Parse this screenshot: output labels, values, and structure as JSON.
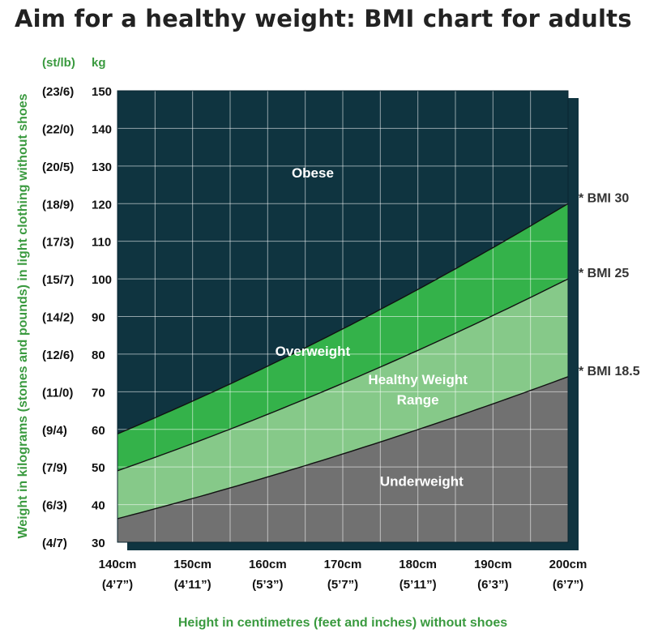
{
  "title": "Aim for a healthy weight: BMI chart for adults",
  "chart_data": {
    "type": "area",
    "title": "Aim for a healthy weight: BMI chart for adults",
    "xlabel": "Height in centimetres (feet and inches) without shoes",
    "ylabel": "Weight in kilograms (stones and pounds) in light clothing without shoes",
    "xlim": [
      140,
      200
    ],
    "ylim": [
      30,
      150
    ],
    "grid": true,
    "x_ticks": [
      {
        "value": 140,
        "label": "140cm",
        "sub": "(4’7”)"
      },
      {
        "value": 150,
        "label": "150cm",
        "sub": "(4’11”)"
      },
      {
        "value": 160,
        "label": "160cm",
        "sub": "(5’3”)"
      },
      {
        "value": 170,
        "label": "170cm",
        "sub": "(5’7”)"
      },
      {
        "value": 180,
        "label": "180cm",
        "sub": "(5’11”)"
      },
      {
        "value": 190,
        "label": "190cm",
        "sub": "(6’3”)"
      },
      {
        "value": 200,
        "label": "200cm",
        "sub": "(6’7”)"
      }
    ],
    "y_header_kg": "kg",
    "y_header_st": "(st/lb)",
    "y_ticks": [
      {
        "value": 30,
        "st": "(4/7)"
      },
      {
        "value": 40,
        "st": "(6/3)"
      },
      {
        "value": 50,
        "st": "(7/9)"
      },
      {
        "value": 60,
        "st": "(9/4)"
      },
      {
        "value": 70,
        "st": "(11/0)"
      },
      {
        "value": 80,
        "st": "(12/6)"
      },
      {
        "value": 90,
        "st": "(14/2)"
      },
      {
        "value": 100,
        "st": "(15/7)"
      },
      {
        "value": 110,
        "st": "(17/3)"
      },
      {
        "value": 120,
        "st": "(18/9)"
      },
      {
        "value": 130,
        "st": "(20/5)"
      },
      {
        "value": 140,
        "st": "(22/0)"
      },
      {
        "value": 150,
        "st": "(23/6)"
      }
    ],
    "bmi_curves": [
      {
        "bmi": 18.5,
        "label": "* BMI 18.5"
      },
      {
        "bmi": 25,
        "label": "* BMI 25"
      },
      {
        "bmi": 30,
        "label": "* BMI 30"
      }
    ],
    "zones": [
      {
        "name": "Obese",
        "lines": [
          "Obese"
        ],
        "at": {
          "x": 166,
          "y": 127
        },
        "color": "#0f3440"
      },
      {
        "name": "Overweight",
        "lines": [
          "Overweight"
        ],
        "at": {
          "x": 166,
          "y": 79.5
        },
        "color": "#34b24a"
      },
      {
        "name": "Healthy Weight Range",
        "lines": [
          "Healthy Weight",
          "Range"
        ],
        "at": {
          "x": 180,
          "y": 72
        },
        "color": "#86c989"
      },
      {
        "name": "Underweight",
        "lines": [
          "Underweight"
        ],
        "at": {
          "x": 180.5,
          "y": 45
        },
        "color": "#717171"
      }
    ]
  }
}
